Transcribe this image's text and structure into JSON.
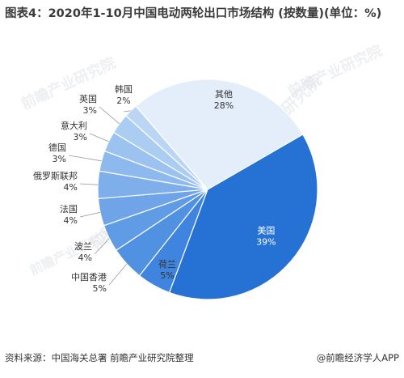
{
  "figure": {
    "title": "图表4：2020年1-10月中国电动两轮出口市场结构 (按数量)(单位：%)",
    "source": "资料来源：中国海关总署 前瞻产业研究院整理",
    "brand": "@前瞻经济学人APP",
    "watermark": "前瞻产业研究院"
  },
  "chart_data": {
    "type": "pie",
    "unit": "%",
    "slices": [
      {
        "label": "美国",
        "value": 39,
        "color": "#2672d4"
      },
      {
        "label": "荷兰",
        "value": 5,
        "color": "#3f85df"
      },
      {
        "label": "中国香港",
        "value": 5,
        "color": "#5191e2"
      },
      {
        "label": "波兰",
        "value": 4,
        "color": "#609be5"
      },
      {
        "label": "法国",
        "value": 4,
        "color": "#6fa5e8"
      },
      {
        "label": "俄罗斯联邦",
        "value": 4,
        "color": "#7eafeb"
      },
      {
        "label": "德国",
        "value": 3,
        "color": "#8db9ee"
      },
      {
        "label": "意大利",
        "value": 3,
        "color": "#9cc3f0"
      },
      {
        "label": "英国",
        "value": 3,
        "color": "#abcdf2"
      },
      {
        "label": "韩国",
        "value": 2,
        "color": "#bad6f4"
      },
      {
        "label": "其他",
        "value": 28,
        "color": "#e4eefb"
      }
    ]
  }
}
